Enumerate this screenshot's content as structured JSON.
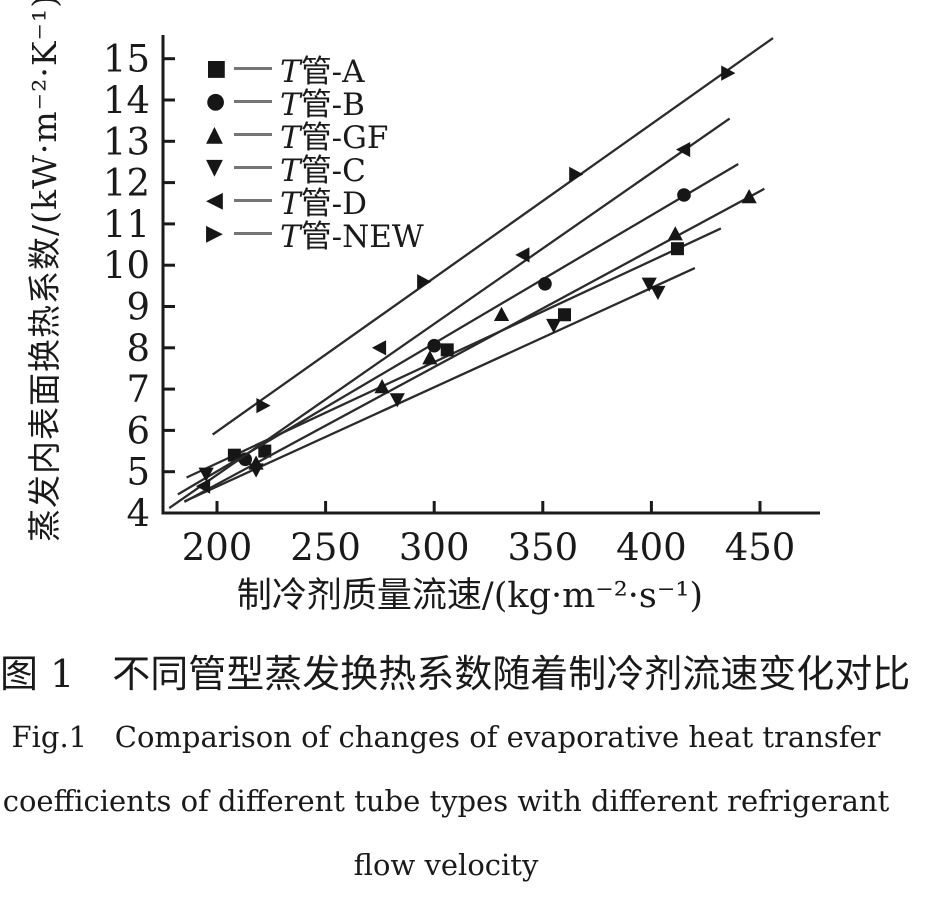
{
  "page": {
    "background": "#ffffff",
    "foreground": "#1a1a1a",
    "line_color": "#2b2b2b",
    "marker_color": "#161616",
    "legend_line_color": "#757575"
  },
  "figure_caption": {
    "zh": "图 1　不同管型蒸发换热系数随着制冷剂流速变化对比",
    "en_lines": [
      "Fig.1   Comparison of changes of evaporative heat transfer",
      "coefficients of different tube types with different refrigerant",
      "flow velocity"
    ]
  },
  "chart_data": {
    "type": "scatter",
    "title": "",
    "xlabel": "制冷剂质量流速/(kg·m⁻²·s⁻¹)",
    "ylabel": "蒸发内表面换热系数/(kW·m⁻²·K⁻¹)",
    "xlim": [
      175,
      478
    ],
    "ylim": [
      4,
      15.6
    ],
    "xticks": [
      200,
      250,
      300,
      350,
      400,
      450
    ],
    "yticks": [
      4,
      5,
      6,
      7,
      8,
      9,
      10,
      11,
      12,
      13,
      14,
      15
    ],
    "grid": false,
    "legend_position": "upper-left",
    "series": [
      {
        "name": "T管-A",
        "italic": "T",
        "label_rest": "管-A",
        "glyph": "■",
        "marker": "square",
        "points": [
          [
            208,
            5.4
          ],
          [
            222,
            5.5
          ],
          [
            306,
            7.95
          ],
          [
            360,
            8.8
          ],
          [
            412,
            10.4
          ]
        ],
        "line": [
          [
            186,
            4.86
          ],
          [
            432,
            10.89
          ]
        ]
      },
      {
        "name": "T管-B",
        "italic": "T",
        "label_rest": "管-B",
        "glyph": "●",
        "marker": "circle",
        "points": [
          [
            213,
            5.3
          ],
          [
            300,
            8.05
          ],
          [
            351,
            9.55
          ],
          [
            415,
            11.7
          ]
        ],
        "line": [
          [
            182,
            4.45
          ],
          [
            440,
            12.45
          ]
        ]
      },
      {
        "name": "T管-GF",
        "italic": "T",
        "label_rest": "管-GF",
        "glyph": "▲",
        "marker": "triangle-up",
        "points": [
          [
            218,
            5.2
          ],
          [
            276,
            7.05
          ],
          [
            298,
            7.75
          ],
          [
            331,
            8.8
          ],
          [
            411,
            10.75
          ],
          [
            445,
            11.65
          ]
        ],
        "line": [
          [
            185,
            4.27
          ],
          [
            452,
            11.85
          ]
        ]
      },
      {
        "name": "T管-C",
        "italic": "T",
        "label_rest": "管-C",
        "glyph": "▼",
        "marker": "triangle-down",
        "points": [
          [
            195,
            4.95
          ],
          [
            218,
            5.05
          ],
          [
            283,
            6.75
          ],
          [
            355,
            8.55
          ],
          [
            399,
            9.55
          ],
          [
            403,
            9.35
          ]
        ],
        "line": [
          [
            185,
            4.28
          ],
          [
            420,
            9.93
          ]
        ]
      },
      {
        "name": "T管-D",
        "italic": "T",
        "label_rest": "管-D",
        "glyph": "◀",
        "marker": "triangle-left",
        "points": [
          [
            194,
            4.65
          ],
          [
            275,
            8.0
          ],
          [
            341,
            10.25
          ],
          [
            415,
            12.8
          ]
        ],
        "line": [
          [
            178,
            4.12
          ],
          [
            436,
            13.55
          ]
        ]
      },
      {
        "name": "T管-NEW",
        "italic": "T",
        "label_rest": "管-NEW",
        "glyph": "▶",
        "marker": "triangle-right",
        "points": [
          [
            221,
            6.6
          ],
          [
            295,
            9.6
          ],
          [
            365,
            12.2
          ],
          [
            435,
            14.65
          ]
        ],
        "line": [
          [
            198,
            5.9
          ],
          [
            456,
            15.5
          ]
        ]
      }
    ]
  }
}
